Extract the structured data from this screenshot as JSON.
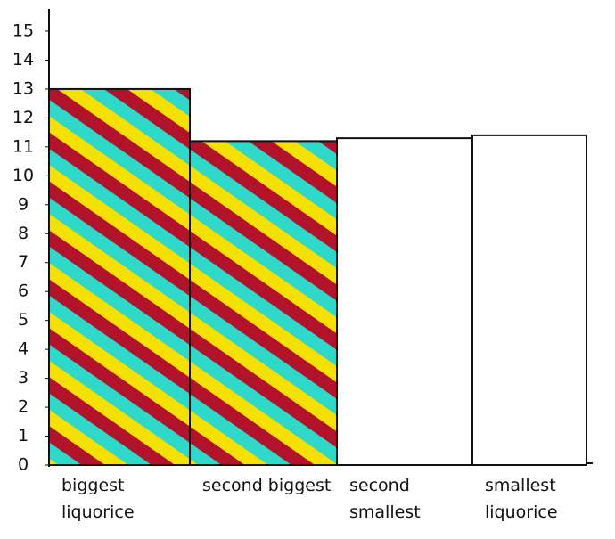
{
  "chart_data": {
    "type": "bar",
    "categories": [
      "biggest liquorice",
      "second biggest",
      "second smallest",
      "smallest liquorice"
    ],
    "values": [
      13,
      11.2,
      11.3,
      11.4
    ],
    "filled": [
      true,
      true,
      false,
      false
    ],
    "stripe_colors": [
      "#b3122b",
      "#2fd9c9",
      "#f4e100"
    ],
    "ylim": [
      0,
      15
    ],
    "yticks": [
      0,
      1,
      2,
      3,
      4,
      5,
      6,
      7,
      8,
      9,
      10,
      11,
      12,
      13,
      14,
      15
    ],
    "grid": false
  }
}
